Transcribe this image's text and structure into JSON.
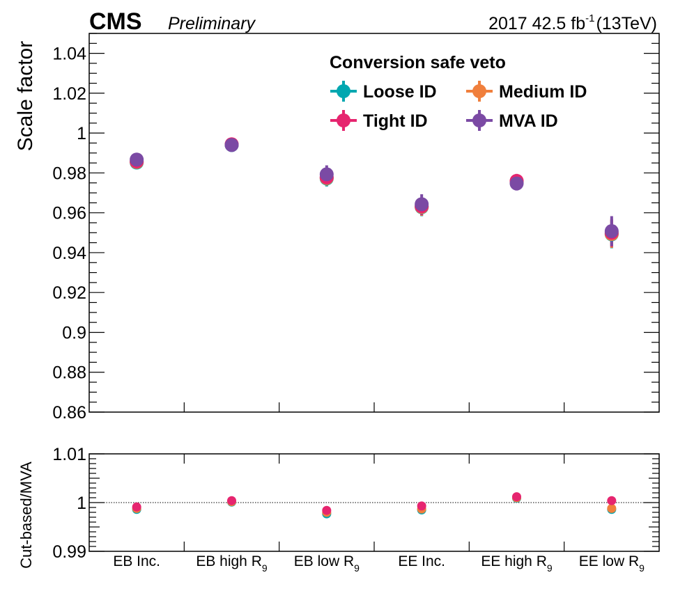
{
  "header": {
    "experiment": "CMS",
    "status": "Preliminary",
    "lumi_main": "2017 42.5 fb",
    "lumi_exp": "-1",
    "lumi_energy": "(13TeV)"
  },
  "legend": {
    "title": "Conversion safe veto",
    "placement": "top-right"
  },
  "categories": [
    {
      "main": "EB Inc.",
      "sub": ""
    },
    {
      "main": "EB high R",
      "sub": "9"
    },
    {
      "main": "EB low R",
      "sub": "9"
    },
    {
      "main": "EE Inc.",
      "sub": ""
    },
    {
      "main": "EE high R",
      "sub": "9"
    },
    {
      "main": "EE low R",
      "sub": "9"
    }
  ],
  "chart_data": [
    {
      "type": "scatter",
      "ylabel": "Scale factor",
      "ylim": [
        0.86,
        1.05
      ],
      "yticks": [
        "0.86",
        "0.88",
        "0.9",
        "0.92",
        "0.94",
        "0.96",
        "0.98",
        "1",
        "1.02",
        "1.04"
      ],
      "grid": false,
      "series": [
        {
          "name": "Loose ID",
          "color": "#00a7b0",
          "values": [
            0.9852,
            0.994,
            0.9772,
            0.9628,
            0.9755,
            0.9492
          ],
          "errors": [
            0.002,
            0.0015,
            0.004,
            0.0045,
            0.0035,
            0.007
          ]
        },
        {
          "name": "Medium ID",
          "color": "#f07f3c",
          "values": [
            0.9855,
            0.9942,
            0.9775,
            0.963,
            0.9757,
            0.9494
          ],
          "errors": [
            0.002,
            0.0015,
            0.004,
            0.0045,
            0.0035,
            0.007
          ]
        },
        {
          "name": "Tight ID",
          "color": "#e6256f",
          "values": [
            0.9858,
            0.9944,
            0.9778,
            0.9633,
            0.976,
            0.95
          ],
          "errors": [
            0.002,
            0.0015,
            0.004,
            0.0045,
            0.0035,
            0.007
          ]
        },
        {
          "name": "MVA ID",
          "color": "#7b4aa4",
          "values": [
            0.9867,
            0.994,
            0.9793,
            0.9643,
            0.9747,
            0.9508
          ],
          "errors": [
            0.002,
            0.0015,
            0.0045,
            0.005,
            0.0035,
            0.0075
          ]
        }
      ]
    },
    {
      "type": "scatter",
      "ylabel": "Cut-based/MVA",
      "ylim": [
        0.99,
        1.01
      ],
      "yticks": [
        "0.99",
        "1",
        "1.01"
      ],
      "reference_line": 1.0,
      "series": [
        {
          "name": "Loose ID",
          "color": "#00a7b0",
          "values": [
            0.9986,
            1.0001,
            0.9977,
            0.9985,
            1.0009,
            0.9986
          ]
        },
        {
          "name": "Medium ID",
          "color": "#f07f3c",
          "values": [
            0.9988,
            1.0002,
            0.998,
            0.9987,
            1.001,
            0.9988
          ]
        },
        {
          "name": "Tight ID",
          "color": "#e6256f",
          "values": [
            0.9991,
            1.0004,
            0.9984,
            0.9993,
            1.0012,
            1.0004
          ]
        }
      ]
    }
  ]
}
